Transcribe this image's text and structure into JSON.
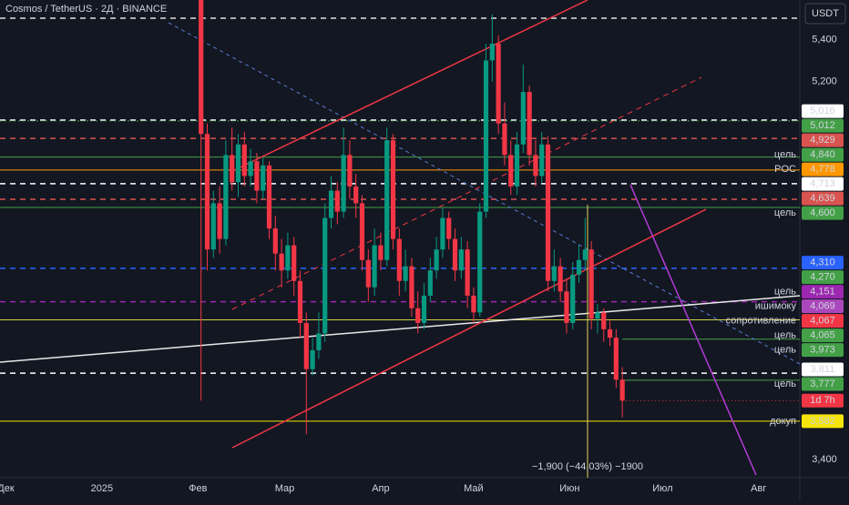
{
  "chart_data": {
    "type": "candlestick",
    "title": "Cosmos / TetherUS · 2Д · BINANCE",
    "currency": "USDT",
    "up_color": "#089981",
    "down_color": "#f23645",
    "xlim": [
      -1.9,
      256.3
    ],
    "ylim": [
      3.313,
      5.588
    ],
    "xticks": [
      {
        "value": 0,
        "label": "Дек"
      },
      {
        "value": 31,
        "label": "2025"
      },
      {
        "value": 62,
        "label": "Фев"
      },
      {
        "value": 90,
        "label": "Мар"
      },
      {
        "value": 121,
        "label": "Апр"
      },
      {
        "value": 151,
        "label": "Май"
      },
      {
        "value": 182,
        "label": "Июн"
      },
      {
        "value": 212,
        "label": "Июл"
      },
      {
        "value": 243,
        "label": "Авг"
      }
    ],
    "yticks": [
      {
        "value": 5.4,
        "label": "5,400"
      },
      {
        "value": 5.2,
        "label": "5,200"
      },
      {
        "value": 3.4,
        "label": "3,400"
      }
    ],
    "x": [
      63,
      65,
      67,
      69,
      71,
      73,
      75,
      77,
      79,
      81,
      83,
      85,
      87,
      89,
      91,
      93,
      95,
      97,
      99,
      101,
      103,
      105,
      107,
      109,
      111,
      113,
      115,
      117,
      119,
      121,
      123,
      125,
      127,
      129,
      131,
      133,
      135,
      137,
      139,
      141,
      143,
      145,
      147,
      149,
      151,
      153,
      155,
      157,
      159,
      161,
      163,
      165,
      167,
      169,
      171,
      173,
      175,
      177,
      179,
      181,
      183,
      185,
      187,
      189,
      191,
      193,
      195,
      197,
      199
    ],
    "ohlc": [
      [
        5.59,
        5.6,
        3.68,
        4.95
      ],
      [
        4.95,
        5.0,
        4.3,
        4.4
      ],
      [
        4.4,
        4.68,
        4.36,
        4.62
      ],
      [
        4.62,
        4.7,
        4.38,
        4.45
      ],
      [
        4.45,
        4.92,
        4.42,
        4.85
      ],
      [
        4.85,
        4.98,
        4.68,
        4.72
      ],
      [
        4.72,
        4.95,
        4.65,
        4.9
      ],
      [
        4.9,
        4.96,
        4.7,
        4.75
      ],
      [
        4.75,
        4.88,
        4.7,
        4.82
      ],
      [
        4.82,
        4.86,
        4.62,
        4.68
      ],
      [
        4.68,
        4.84,
        4.64,
        4.8
      ],
      [
        4.8,
        4.82,
        4.45,
        4.5
      ],
      [
        4.5,
        4.56,
        4.3,
        4.38
      ],
      [
        4.38,
        4.45,
        4.22,
        4.3
      ],
      [
        4.3,
        4.48,
        4.26,
        4.42
      ],
      [
        4.42,
        4.46,
        4.18,
        4.25
      ],
      [
        4.25,
        4.3,
        3.98,
        4.05
      ],
      [
        4.05,
        4.1,
        3.52,
        3.83
      ],
      [
        3.83,
        3.98,
        3.8,
        3.92
      ],
      [
        3.92,
        4.1,
        3.88,
        4.0
      ],
      [
        4.0,
        4.62,
        3.96,
        4.55
      ],
      [
        4.55,
        4.75,
        4.5,
        4.68
      ],
      [
        4.68,
        4.72,
        4.52,
        4.58
      ],
      [
        4.58,
        4.98,
        4.55,
        4.85
      ],
      [
        4.85,
        4.92,
        4.64,
        4.7
      ],
      [
        4.7,
        4.76,
        4.55,
        4.62
      ],
      [
        4.62,
        4.66,
        4.3,
        4.35
      ],
      [
        4.35,
        4.4,
        4.15,
        4.22
      ],
      [
        4.22,
        4.5,
        4.18,
        4.42
      ],
      [
        4.42,
        4.48,
        4.3,
        4.35
      ],
      [
        4.35,
        4.98,
        4.32,
        4.92
      ],
      [
        4.92,
        4.95,
        4.4,
        4.45
      ],
      [
        4.45,
        4.5,
        4.18,
        4.25
      ],
      [
        4.25,
        4.4,
        4.2,
        4.32
      ],
      [
        4.32,
        4.36,
        4.08,
        4.12
      ],
      [
        4.12,
        4.2,
        4.0,
        4.05
      ],
      [
        4.05,
        4.24,
        4.02,
        4.18
      ],
      [
        4.18,
        4.36,
        4.15,
        4.3
      ],
      [
        4.3,
        4.46,
        4.26,
        4.4
      ],
      [
        4.4,
        4.6,
        4.36,
        4.55
      ],
      [
        4.55,
        4.58,
        4.4,
        4.45
      ],
      [
        4.45,
        4.5,
        4.25,
        4.3
      ],
      [
        4.3,
        4.46,
        4.26,
        4.4
      ],
      [
        4.4,
        4.44,
        4.12,
        4.18
      ],
      [
        4.18,
        4.22,
        4.05,
        4.1
      ],
      [
        4.1,
        4.62,
        4.08,
        4.58
      ],
      [
        4.58,
        5.38,
        4.55,
        5.3
      ],
      [
        5.3,
        5.52,
        5.2,
        5.38
      ],
      [
        5.38,
        5.42,
        4.95,
        5.0
      ],
      [
        5.0,
        5.1,
        4.8,
        4.85
      ],
      [
        4.85,
        4.92,
        4.66,
        4.7
      ],
      [
        4.7,
        4.96,
        4.66,
        4.9
      ],
      [
        4.9,
        5.28,
        4.86,
        5.15
      ],
      [
        5.15,
        5.18,
        4.8,
        4.85
      ],
      [
        4.85,
        4.92,
        4.7,
        4.75
      ],
      [
        4.75,
        4.96,
        4.72,
        4.9
      ],
      [
        4.9,
        4.94,
        4.2,
        4.25
      ],
      [
        4.25,
        4.4,
        4.2,
        4.32
      ],
      [
        4.32,
        4.36,
        4.15,
        4.2
      ],
      [
        4.2,
        4.26,
        4.0,
        4.05
      ],
      [
        4.05,
        4.34,
        4.02,
        4.28
      ],
      [
        4.28,
        4.42,
        4.24,
        4.35
      ],
      [
        4.35,
        4.55,
        4.3,
        4.4
      ],
      [
        4.4,
        4.44,
        4.02,
        4.07
      ],
      [
        4.07,
        4.14,
        4.0,
        4.1
      ],
      [
        4.1,
        4.12,
        3.96,
        4.02
      ],
      [
        4.02,
        4.06,
        3.94,
        3.98
      ],
      [
        3.98,
        4.02,
        3.74,
        3.78
      ],
      [
        3.78,
        3.84,
        3.6,
        3.68
      ]
    ],
    "levels": [
      {
        "value": 5.016,
        "label": "5,016",
        "color": "#ffffff",
        "text_color": "#131722",
        "style": "dashed"
      },
      {
        "value": 5.012,
        "label": "5,012",
        "color": "#43a047",
        "style": "dotted"
      },
      {
        "value": 4.929,
        "label": "4,929",
        "color": "#d9534f",
        "style": "dashed"
      },
      {
        "value": 4.84,
        "label": "4,840",
        "color": "#43a047",
        "style": "solid",
        "text": "цель"
      },
      {
        "value": 4.778,
        "label": "4,778",
        "color": "#ff9800",
        "style": "solid",
        "text": "POC"
      },
      {
        "value": 4.713,
        "label": "4,713",
        "color": "#ffffff",
        "text_color": "#131722",
        "style": "dashed"
      },
      {
        "value": 4.639,
        "label": "4,639",
        "color": "#d9534f",
        "style": "dashed"
      },
      {
        "value": 4.6,
        "label": "4,600",
        "color": "#43a047",
        "style": "solid",
        "text": "цель"
      },
      {
        "value": 4.31,
        "label": "4,310",
        "color": "#2962ff",
        "style": "dashed"
      },
      {
        "value": 4.27,
        "label": "4,270",
        "color": "#43a047",
        "style": "none"
      },
      {
        "value": 4.151,
        "label": "4,151",
        "color": "#9c27b0",
        "style": "dashed",
        "text": "цель"
      },
      {
        "value": 4.069,
        "label": "4,069",
        "color": "#ab47bc",
        "style": "none",
        "text": "ишимоку"
      },
      {
        "value": 4.067,
        "label": "4,067",
        "color": "#f23645",
        "style": "none",
        "text": "сопротивление"
      },
      {
        "value": 4.065,
        "label": "4,065",
        "color": "#43a047",
        "line_color": "#d4d04a",
        "style": "solid",
        "text": "цель"
      },
      {
        "value": 3.973,
        "label": "3,973",
        "color": "#43a047",
        "style": "short",
        "text": "цель"
      },
      {
        "value": 3.811,
        "label": "3,811",
        "color": "#ffffff",
        "text_color": "#131722",
        "style": "dashed"
      },
      {
        "value": 3.777,
        "label": "3,777",
        "color": "#43a047",
        "style": "short",
        "text": "цель"
      },
      {
        "value": 3.582,
        "label": "3,582",
        "color": "#f5e50a",
        "text_color": "#131722",
        "style": "solid",
        "text": "докуп"
      }
    ],
    "countdown": "1d 7h",
    "measure_label": "−1,900 (−44,03%) −1900"
  }
}
